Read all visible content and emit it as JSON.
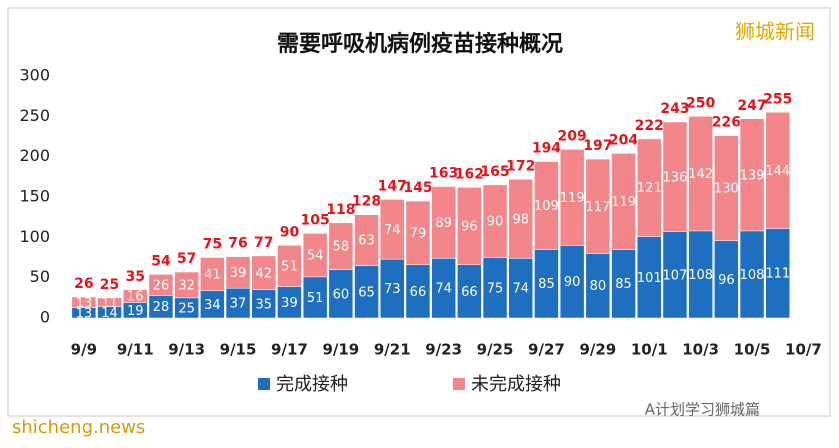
{
  "chart_data": {
    "type": "stacked-bar",
    "title": "需要呼吸机病例疫苗接种概况",
    "watermarks": [
      "狮城新闻",
      "A计划学习狮城篇",
      "shicheng.news"
    ],
    "categories": [
      "9/9",
      null,
      "9/11",
      null,
      "9/13",
      null,
      "9/15",
      null,
      "9/17",
      null,
      "9/19",
      null,
      "9/21",
      null,
      "9/23",
      null,
      "9/25",
      null,
      "9/27",
      null,
      "9/29",
      null,
      "10/1",
      null,
      "10/3",
      null,
      "10/5",
      null,
      "10/7"
    ],
    "series": [
      {
        "name": "完成接种",
        "color": "#1f6fc0",
        "values": [
          13,
          14,
          19,
          28,
          25,
          34,
          37,
          35,
          39,
          51,
          60,
          65,
          73,
          66,
          74,
          66,
          75,
          74,
          85,
          90,
          80,
          85,
          101,
          107,
          108,
          96,
          108,
          111,
          null
        ]
      },
      {
        "name": "未完成接种",
        "color": "#f2868b",
        "values": [
          13,
          11,
          16,
          26,
          32,
          41,
          39,
          42,
          51,
          54,
          58,
          63,
          74,
          79,
          89,
          96,
          90,
          98,
          109,
          119,
          117,
          119,
          121,
          136,
          142,
          130,
          139,
          144,
          null
        ]
      }
    ],
    "totals": [
      26,
      25,
      35,
      54,
      57,
      75,
      76,
      77,
      90,
      105,
      118,
      128,
      147,
      145,
      163,
      162,
      165,
      172,
      194,
      209,
      197,
      204,
      222,
      243,
      250,
      226,
      247,
      255,
      null
    ],
    "total_color": "#e3141b",
    "ylim": [
      0,
      300
    ],
    "yticks": [
      0,
      50,
      100,
      150,
      200,
      250,
      300
    ],
    "grid": false
  }
}
